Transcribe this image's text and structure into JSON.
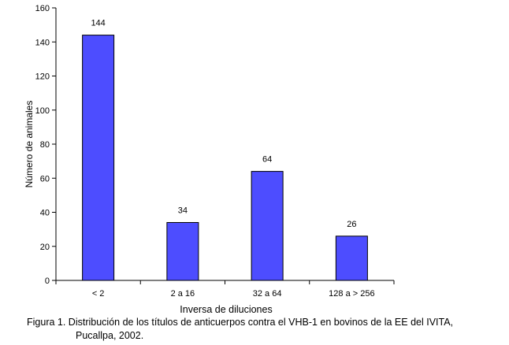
{
  "chart_data": {
    "type": "bar",
    "categories": [
      "< 2",
      "2 a 16",
      "32 a 64",
      "128 a > 256"
    ],
    "values": [
      144,
      34,
      64,
      26
    ],
    "data_labels": [
      "144",
      "34",
      "64",
      "26"
    ],
    "xlabel": "Inversa de diluciones",
    "ylabel": "Número de animales",
    "ylim": [
      0,
      160
    ],
    "yticks": [
      0,
      20,
      40,
      60,
      80,
      100,
      120,
      140,
      160
    ],
    "grid": false,
    "legend": "none",
    "bar_color": "#4d4dff",
    "bar_edge_color": "#000000"
  },
  "caption": {
    "line1": "Figura 1. Distribución de los títulos de anticuerpos contra el VHB-1 en bovinos de la EE del IVITA,",
    "line2": "Pucallpa, 2002."
  }
}
